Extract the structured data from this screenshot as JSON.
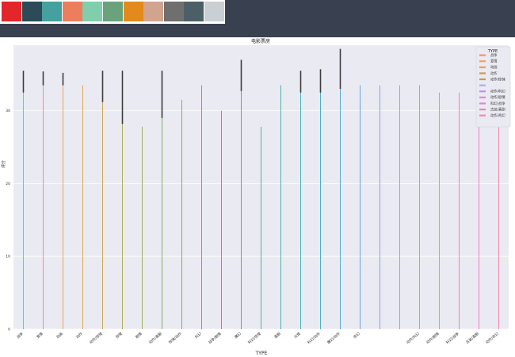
{
  "palette": {
    "colors": [
      "#e3262a",
      "#2c4a57",
      "#44a19f",
      "#ec7e5e",
      "#80ceac",
      "#6aa27c",
      "#e28a1d",
      "#d1a48f",
      "#6f6f6f",
      "#4c5f66",
      "#c9cfd3"
    ]
  },
  "chart_data": {
    "type": "bar",
    "title": "电影票房",
    "xlabel": "TYPE",
    "ylabel": "评分",
    "ylim": [
      0,
      39
    ],
    "yticks": [
      0,
      10,
      20,
      30
    ],
    "grid": true,
    "legend": {
      "title": "TYPE",
      "placement": "top-right",
      "entries": [
        "战争",
        "爱情",
        "动画",
        "动作",
        "动作/惊悚",
        "",
        "动作/科幻",
        "动作/剧情",
        "科幻/战争",
        "古装/喜剧",
        "动作/奇幻"
      ]
    },
    "categories": [
      "战争",
      "爱情",
      "动画",
      "动作",
      "动作/惊悚",
      "惊悚",
      "剧情",
      "动作/喜剧",
      "惊悚/动作",
      "科幻",
      "战争/剧情",
      "魔幻",
      "科幻/惊悚",
      "喜剧",
      "灾难",
      "科幻/动作",
      "魔幻/动作",
      "奇幻",
      "",
      "",
      "动作/科幻",
      "动作/剧情",
      "科幻/战争",
      "古装/喜剧",
      "动作/奇幻"
    ],
    "values": [
      33.8,
      33.5,
      33.5,
      33.5,
      32.5,
      31.5,
      27.8,
      31.5,
      31.5,
      33.5,
      30.0,
      33.5,
      27.8,
      33.5,
      33.5,
      33.5,
      33.5,
      33.5,
      33.5,
      33.5,
      33.5,
      32.5,
      32.5,
      32.5,
      32.5
    ],
    "errors": [
      [
        32.5,
        35.5
      ],
      [
        33.5,
        35.4
      ],
      [
        33.5,
        35.2
      ],
      null,
      [
        31.2,
        35.5
      ],
      [
        28.2,
        35.5
      ],
      null,
      [
        29.0,
        35.5
      ],
      null,
      null,
      null,
      [
        32.7,
        37.0
      ],
      null,
      null,
      [
        32.5,
        35.5
      ],
      [
        32.5,
        35.7
      ],
      [
        33.0,
        38.5
      ],
      null,
      null,
      null,
      null,
      null,
      null,
      null,
      null
    ],
    "colors": [
      "#fa8c78",
      "#f9906e",
      "#f2a25d",
      "#dba65a",
      "#c9a658",
      "#b3ad5a",
      "#9fb05e",
      "#86b360",
      "#6fb764",
      "#58b970",
      "#4cb880",
      "#49b690",
      "#49b5a0",
      "#48b4ae",
      "#4ab3b9",
      "#4db0c5",
      "#57aad4",
      "#6da5e1",
      "#8ba0e8",
      "#a89aeb",
      "#c290e8",
      "#d68adf",
      "#e483d3",
      "#ee82c2",
      "#f288ae"
    ]
  }
}
